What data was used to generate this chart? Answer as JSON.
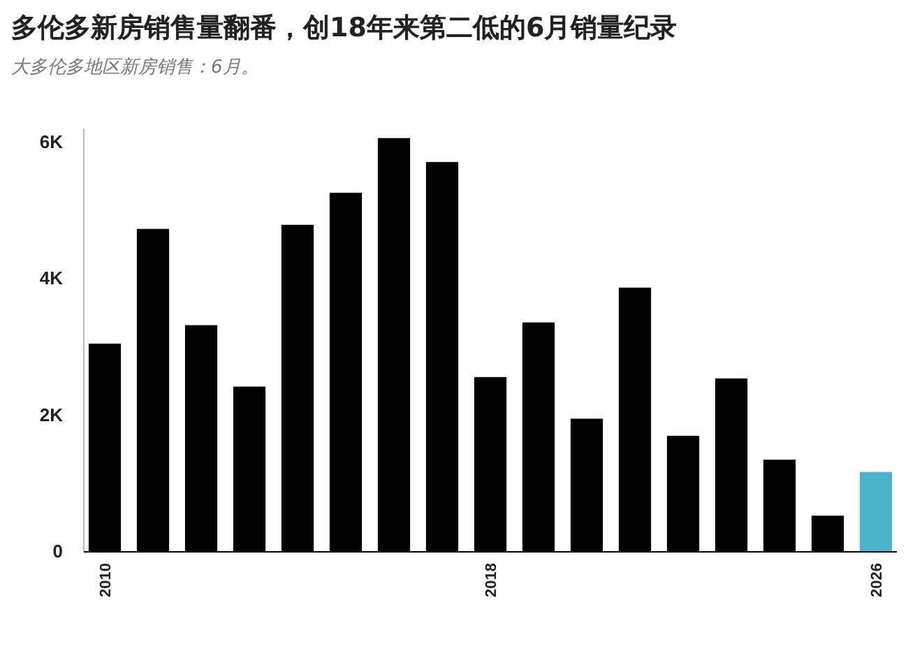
{
  "chart_data": {
    "type": "bar",
    "title": "多伦多新房销售量翻番，创18年来第二低的6月销量纪录",
    "subtitle": "大多伦多地区新房销售：6月。",
    "categories": [
      "2010",
      null,
      null,
      null,
      null,
      null,
      null,
      null,
      "2018",
      null,
      null,
      null,
      null,
      null,
      null,
      null,
      "2026"
    ],
    "values": [
      3050,
      4730,
      3320,
      2420,
      4790,
      5260,
      6060,
      5710,
      2560,
      3360,
      1950,
      3870,
      1700,
      2540,
      1350,
      530,
      1170
    ],
    "colors": [
      "#000000",
      "#000000",
      "#000000",
      "#000000",
      "#000000",
      "#000000",
      "#000000",
      "#000000",
      "#000000",
      "#000000",
      "#000000",
      "#000000",
      "#000000",
      "#000000",
      "#000000",
      "#000000",
      "#4bb3cc"
    ],
    "ylim": [
      0,
      6200
    ],
    "yticks": [
      0,
      {
        "value": 2000,
        "label": "2K"
      },
      {
        "value": 4000,
        "label": "4K"
      },
      {
        "value": 6000,
        "label": "6K"
      }
    ],
    "grid": false
  }
}
